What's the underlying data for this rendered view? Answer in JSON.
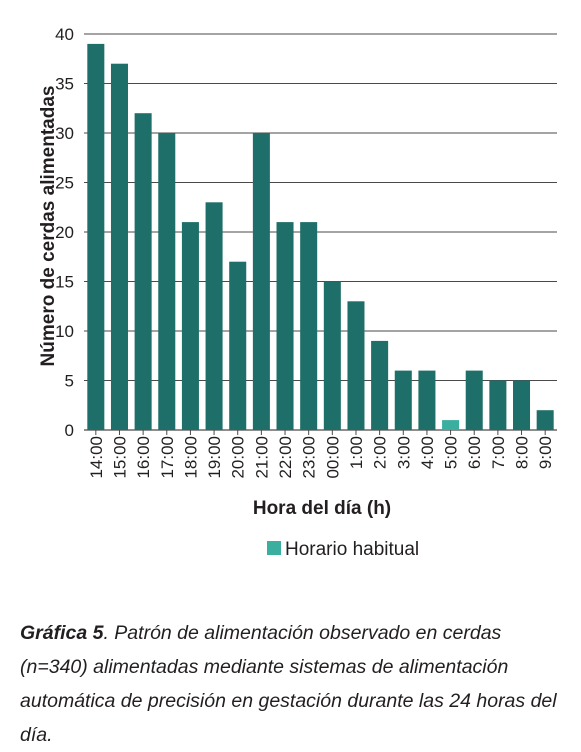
{
  "chart_data": {
    "type": "bar",
    "categories": [
      "14:00",
      "15:00",
      "16:00",
      "17:00",
      "18:00",
      "19:00",
      "20:00",
      "21:00",
      "22:00",
      "23:00",
      "00:00",
      "1:00",
      "2:00",
      "3:00",
      "4:00",
      "5:00",
      "6:00",
      "7:00",
      "8:00",
      "9:00"
    ],
    "values": [
      39,
      37,
      32,
      30,
      21,
      23,
      17,
      30,
      21,
      21,
      15,
      13,
      9,
      6,
      6,
      1,
      6,
      5,
      5,
      2
    ],
    "highlight_index": 15,
    "xlabel": "Hora del día (h)",
    "ylabel": "Número de cerdas alimentadas",
    "ylim": [
      0,
      40
    ],
    "yticks": [
      0,
      5,
      10,
      15,
      20,
      25,
      30,
      35,
      40
    ],
    "grid": true,
    "legend": [
      {
        "label": "Horario habitual",
        "color": "#3aafa0"
      }
    ],
    "colors": {
      "bar": "#1e6f69",
      "highlight": "#3aafa0",
      "grid": "#4a4a4a"
    }
  },
  "caption": {
    "label": "Gráfica 5",
    "text": ". Patrón de alimentación observado en cerdas (n=340) alimentadas mediante sistemas de alimentación automática de precisión en gestación durante las 24 horas del día."
  }
}
